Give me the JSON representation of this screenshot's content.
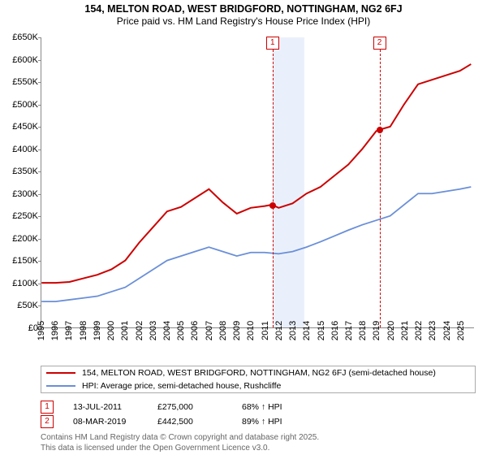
{
  "title": "154, MELTON ROAD, WEST BRIDGFORD, NOTTINGHAM, NG2 6FJ",
  "subtitle": "Price paid vs. HM Land Registry's House Price Index (HPI)",
  "chart": {
    "type": "line",
    "background_color": "#ffffff",
    "xlim_years": [
      1995,
      2026
    ],
    "ylim": [
      0,
      650000
    ],
    "ytick_step": 50000,
    "ytick_labels": [
      "£0",
      "£50K",
      "£100K",
      "£150K",
      "£200K",
      "£250K",
      "£300K",
      "£350K",
      "£400K",
      "£450K",
      "£500K",
      "£550K",
      "£600K",
      "£650K"
    ],
    "xtick_years": [
      1995,
      1996,
      1997,
      1998,
      1999,
      2000,
      2001,
      2002,
      2003,
      2004,
      2005,
      2006,
      2007,
      2008,
      2009,
      2010,
      2011,
      2012,
      2013,
      2014,
      2015,
      2016,
      2017,
      2018,
      2019,
      2020,
      2021,
      2022,
      2023,
      2024,
      2025
    ],
    "shaded_regions": [
      {
        "from_year": 2011.53,
        "to_year": 2013.8,
        "color": "#eaf0fb"
      }
    ],
    "series": [
      {
        "name": "property",
        "label": "154, MELTON ROAD, WEST BRIDGFORD, NOTTINGHAM, NG2 6FJ (semi-detached house)",
        "color": "#cc0000",
        "line_width": 2,
        "points": [
          [
            1995,
            100000
          ],
          [
            1996,
            100000
          ],
          [
            1997,
            102000
          ],
          [
            1998,
            110000
          ],
          [
            1999,
            118000
          ],
          [
            2000,
            130000
          ],
          [
            2001,
            150000
          ],
          [
            2002,
            190000
          ],
          [
            2003,
            225000
          ],
          [
            2004,
            260000
          ],
          [
            2005,
            270000
          ],
          [
            2006,
            290000
          ],
          [
            2007,
            310000
          ],
          [
            2008,
            280000
          ],
          [
            2009,
            255000
          ],
          [
            2010,
            268000
          ],
          [
            2011,
            272000
          ],
          [
            2011.53,
            275000
          ],
          [
            2012,
            268000
          ],
          [
            2013,
            278000
          ],
          [
            2014,
            300000
          ],
          [
            2015,
            315000
          ],
          [
            2016,
            340000
          ],
          [
            2017,
            365000
          ],
          [
            2018,
            400000
          ],
          [
            2019,
            440000
          ],
          [
            2019.18,
            442500
          ],
          [
            2020,
            450000
          ],
          [
            2021,
            500000
          ],
          [
            2022,
            545000
          ],
          [
            2023,
            555000
          ],
          [
            2024,
            565000
          ],
          [
            2025,
            575000
          ],
          [
            2025.8,
            590000
          ]
        ]
      },
      {
        "name": "hpi",
        "label": "HPI: Average price, semi-detached house, Rushcliffe",
        "color": "#6a8fd8",
        "line_width": 1.8,
        "points": [
          [
            1995,
            58000
          ],
          [
            1996,
            58000
          ],
          [
            1997,
            62000
          ],
          [
            1998,
            66000
          ],
          [
            1999,
            70000
          ],
          [
            2000,
            80000
          ],
          [
            2001,
            90000
          ],
          [
            2002,
            110000
          ],
          [
            2003,
            130000
          ],
          [
            2004,
            150000
          ],
          [
            2005,
            160000
          ],
          [
            2006,
            170000
          ],
          [
            2007,
            180000
          ],
          [
            2008,
            170000
          ],
          [
            2009,
            160000
          ],
          [
            2010,
            168000
          ],
          [
            2011,
            168000
          ],
          [
            2012,
            165000
          ],
          [
            2013,
            170000
          ],
          [
            2014,
            180000
          ],
          [
            2015,
            192000
          ],
          [
            2016,
            205000
          ],
          [
            2017,
            218000
          ],
          [
            2018,
            230000
          ],
          [
            2019,
            240000
          ],
          [
            2020,
            250000
          ],
          [
            2021,
            275000
          ],
          [
            2022,
            300000
          ],
          [
            2023,
            300000
          ],
          [
            2024,
            305000
          ],
          [
            2025,
            310000
          ],
          [
            2025.8,
            315000
          ]
        ]
      }
    ],
    "markers": [
      {
        "id": "1",
        "year": 2011.53,
        "value": 275000,
        "color": "#cc0000"
      },
      {
        "id": "2",
        "year": 2019.18,
        "value": 442500,
        "color": "#cc0000"
      }
    ]
  },
  "transactions": [
    {
      "id": "1",
      "date": "13-JUL-2011",
      "price": "£275,000",
      "hpi_delta": "68% ↑ HPI",
      "color": "#cc0000"
    },
    {
      "id": "2",
      "date": "08-MAR-2019",
      "price": "£442,500",
      "hpi_delta": "89% ↑ HPI",
      "color": "#cc0000"
    }
  ],
  "footer": {
    "line1": "Contains HM Land Registry data © Crown copyright and database right 2025.",
    "line2": "This data is licensed under the Open Government Licence v3.0."
  }
}
